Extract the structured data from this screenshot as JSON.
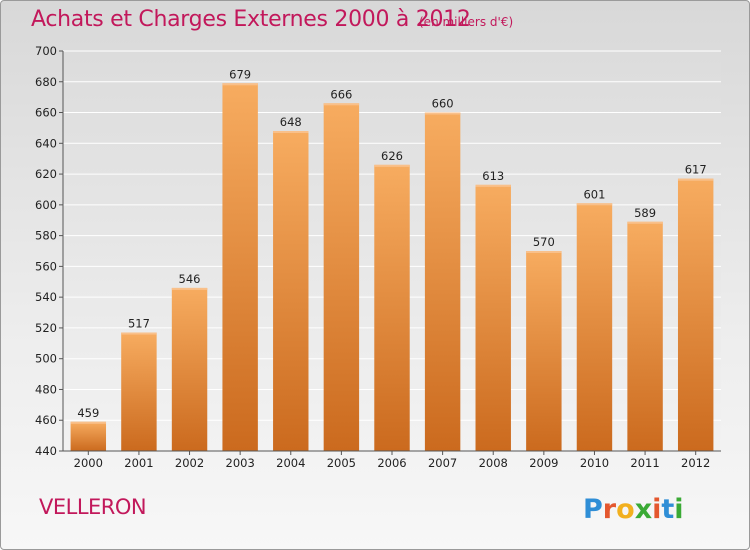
{
  "header": {
    "title": "Achats et Charges Externes 2000 à 2012",
    "subtitle": "(en milliers d'€)"
  },
  "footer": {
    "commune": "VELLERON",
    "logo_text": "Proxiti"
  },
  "colors": {
    "accent": "#c2185b",
    "bar_light": "#f6a85c",
    "bar_dark": "#cc6a1d"
  },
  "chart_data": {
    "type": "bar",
    "title": "Achats et Charges Externes 2000 à 2012",
    "subtitle": "(en milliers d'€)",
    "xlabel": "",
    "ylabel": "",
    "categories": [
      "2000",
      "2001",
      "2002",
      "2003",
      "2004",
      "2005",
      "2006",
      "2007",
      "2008",
      "2009",
      "2010",
      "2011",
      "2012"
    ],
    "values": [
      459,
      517,
      546,
      679,
      648,
      666,
      626,
      660,
      613,
      570,
      601,
      589,
      617
    ],
    "ylim": [
      440,
      700
    ],
    "yticks": [
      440,
      460,
      480,
      500,
      520,
      540,
      560,
      580,
      600,
      620,
      640,
      660,
      680,
      700
    ],
    "grid": true,
    "data_labels": true
  }
}
